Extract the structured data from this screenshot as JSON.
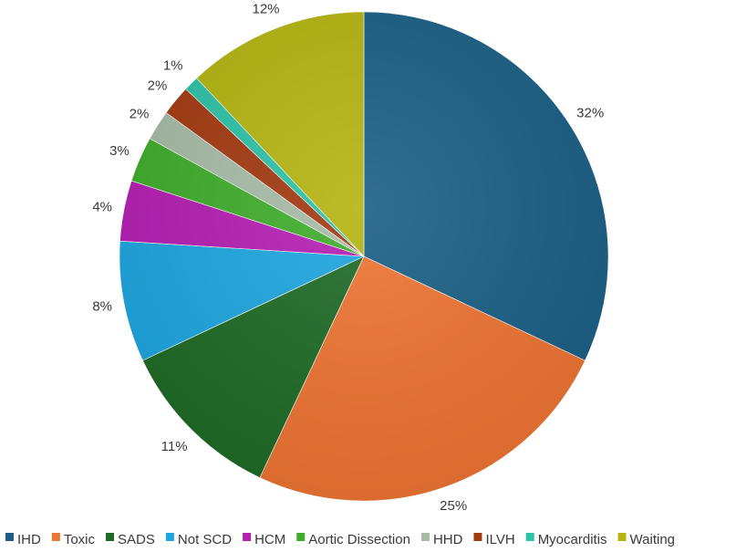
{
  "chart_data": {
    "type": "pie",
    "title": "",
    "legend_position": "bottom",
    "start_angle_deg": 0,
    "direction": "clockwise",
    "slices": [
      {
        "name": "IHD",
        "value": 32,
        "label": "32%",
        "color": "#1b5f86"
      },
      {
        "name": "Toxic",
        "value": 25,
        "label": "25%",
        "color": "#ee7433"
      },
      {
        "name": "SADS",
        "value": 11,
        "label": "11%",
        "color": "#1e6b26"
      },
      {
        "name": "Not SCD",
        "value": 8,
        "label": "8%",
        "color": "#1ea6e0"
      },
      {
        "name": "HCM",
        "value": 4,
        "label": "4%",
        "color": "#b51fb3"
      },
      {
        "name": "Aortic Dissection",
        "value": 3,
        "label": "3%",
        "color": "#3fad2c"
      },
      {
        "name": "HHD",
        "value": 2,
        "label": "2%",
        "color": "#a7bba7"
      },
      {
        "name": "ILVH",
        "value": 2,
        "label": "2%",
        "color": "#a33a12"
      },
      {
        "name": "Myocarditis",
        "value": 1,
        "label": "1%",
        "color": "#2dc3a8"
      },
      {
        "name": "Waiting",
        "value": 12,
        "label": "12%",
        "color": "#b5b512"
      }
    ]
  }
}
